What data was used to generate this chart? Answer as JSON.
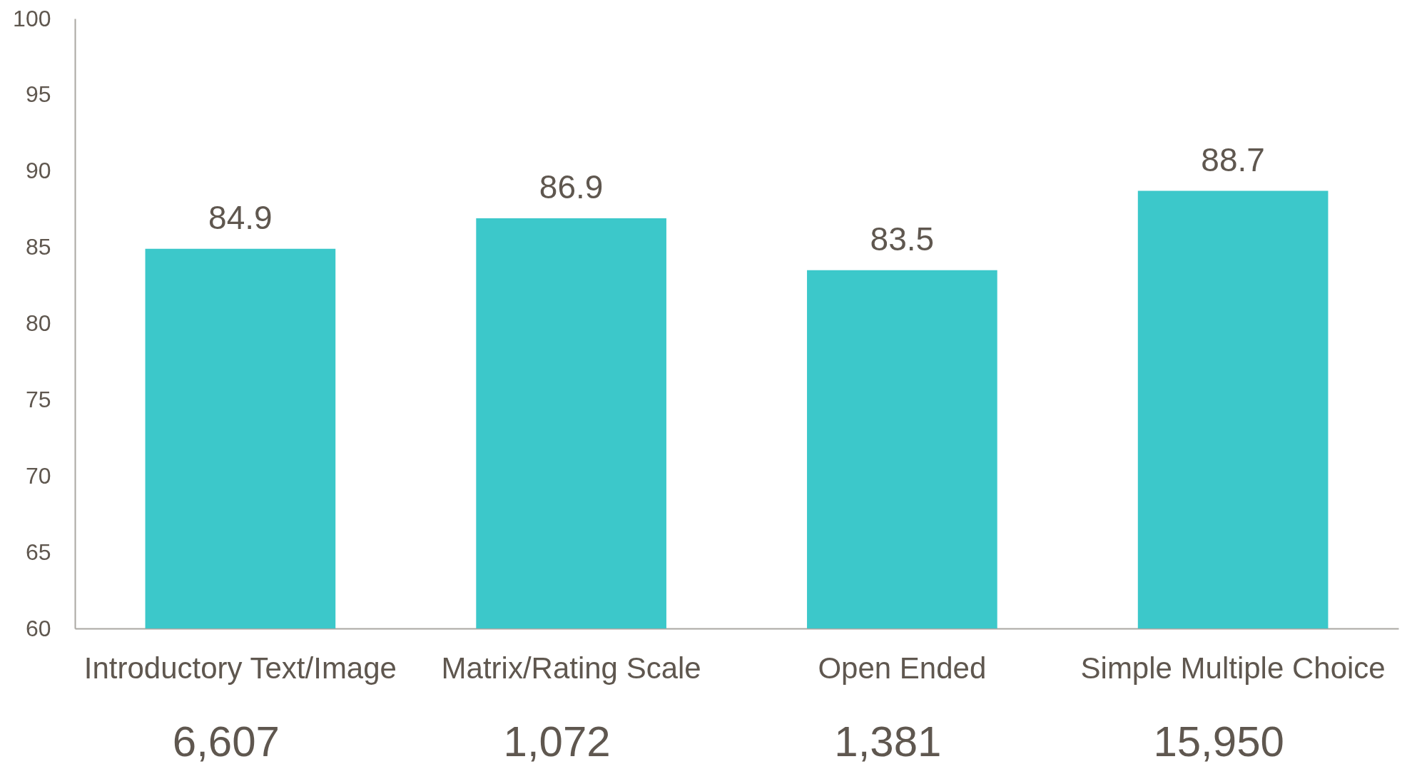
{
  "chart_data": {
    "type": "bar",
    "categories": [
      "Introductory Text/Image",
      "Matrix/Rating Scale",
      "Open Ended",
      "Simple Multiple Choice"
    ],
    "values": [
      84.9,
      86.9,
      83.5,
      88.7
    ],
    "color": "#3cc8ca",
    "ylim": [
      60,
      100
    ],
    "yticks": [
      60,
      65,
      70,
      75,
      80,
      85,
      90,
      95,
      100
    ],
    "data_labels": true,
    "annotations": [
      "6,607",
      "1,072",
      "1,381",
      "15,950"
    ]
  }
}
